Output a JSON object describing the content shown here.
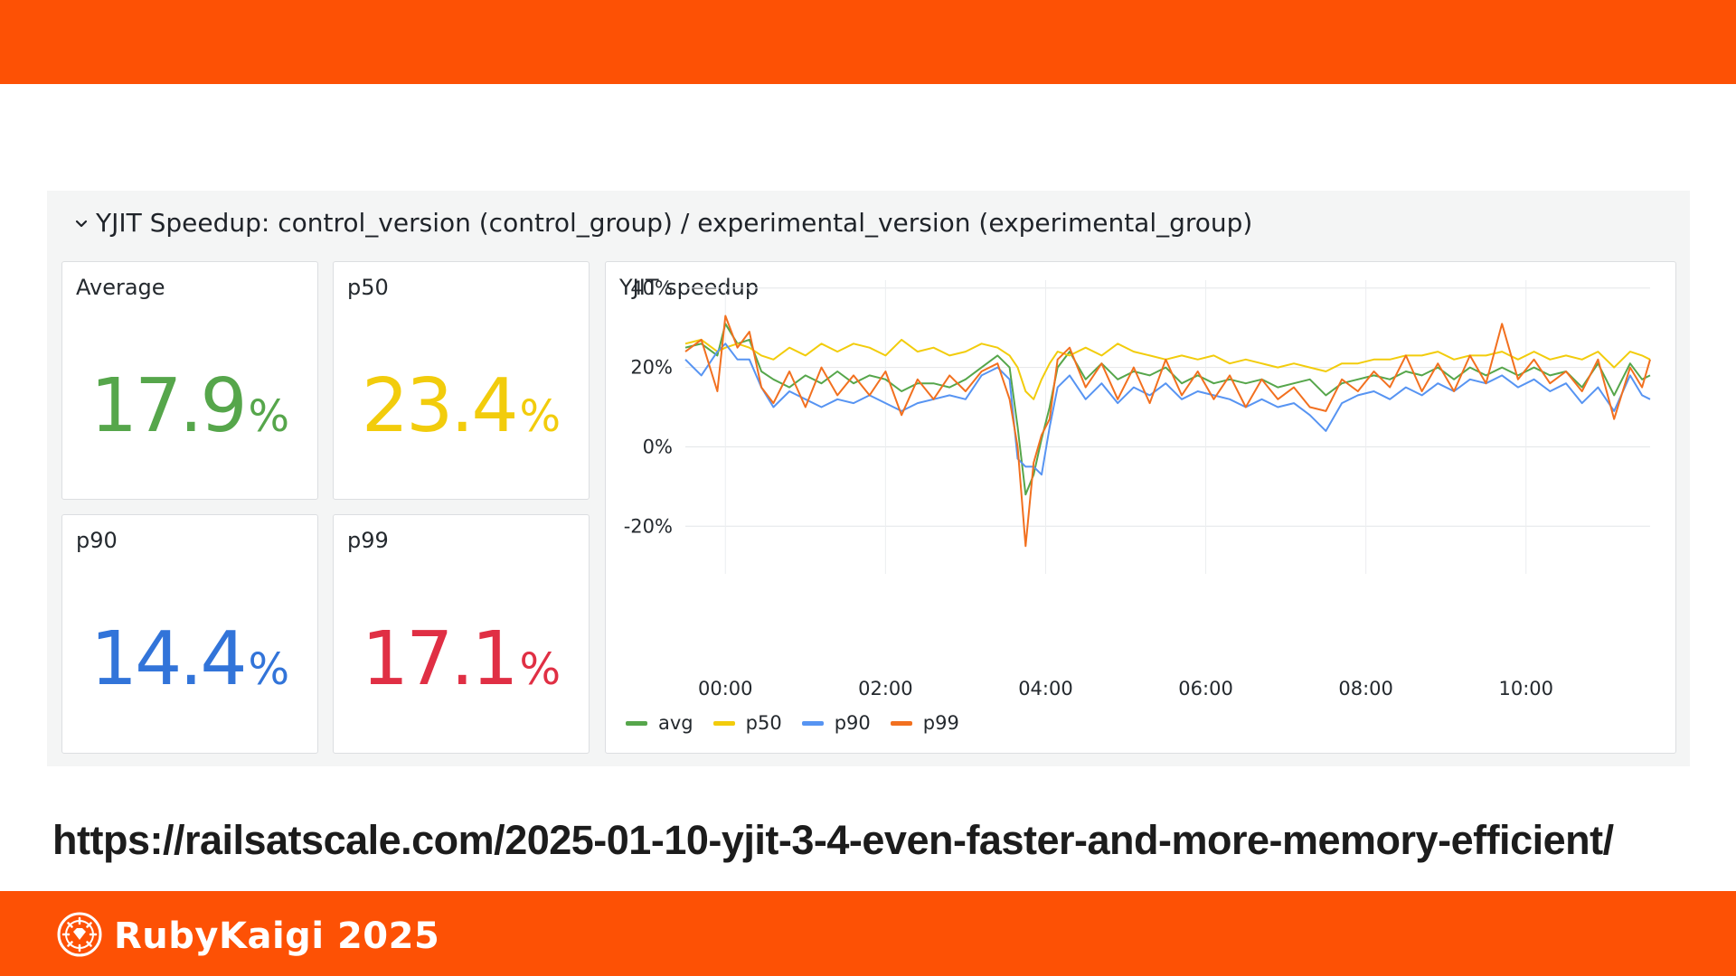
{
  "slide": {
    "url": "https://railsatscale.com/2025-01-10-yjit-3-4-even-faster-and-more-memory-efficient/",
    "brand_name": "RubyKaigi 2025",
    "accent_color": "#fd5105"
  },
  "dashboard": {
    "row_title": "YJIT Speedup: control_version (control_group) / experimental_version (experimental_group)",
    "row_icon": "chevron-down-icon",
    "stats": [
      {
        "title": "Average",
        "value": "17.9",
        "unit": "%",
        "color": "#56a64b"
      },
      {
        "title": "p50",
        "value": "23.4",
        "unit": "%",
        "color": "#f2cc0c"
      },
      {
        "title": "p90",
        "value": "14.4",
        "unit": "%",
        "color": "#3274d9"
      },
      {
        "title": "p99",
        "value": "17.1",
        "unit": "%",
        "color": "#e02f44"
      }
    ],
    "chart_title": "YJIT speedup"
  },
  "chart_data": {
    "type": "line",
    "title": "YJIT speedup",
    "xlabel": "",
    "ylabel": "",
    "x_ticks": [
      "00:00",
      "02:00",
      "04:00",
      "06:00",
      "08:00",
      "10:00"
    ],
    "y_ticks": [
      "40%",
      "20%",
      "0%",
      "-20%"
    ],
    "ylim": [
      -32,
      42
    ],
    "xlim": [
      -0.5,
      11.55
    ],
    "grid": true,
    "legend_position": "bottom",
    "series": [
      {
        "name": "avg",
        "color": "#56a64b",
        "points": [
          [
            -0.5,
            25
          ],
          [
            -0.3,
            26
          ],
          [
            -0.1,
            23
          ],
          [
            0.0,
            31
          ],
          [
            0.15,
            26
          ],
          [
            0.3,
            27
          ],
          [
            0.45,
            19
          ],
          [
            0.6,
            17
          ],
          [
            0.8,
            15
          ],
          [
            1.0,
            18
          ],
          [
            1.2,
            16
          ],
          [
            1.4,
            19
          ],
          [
            1.6,
            16
          ],
          [
            1.8,
            18
          ],
          [
            2.0,
            17
          ],
          [
            2.2,
            14
          ],
          [
            2.4,
            16
          ],
          [
            2.6,
            16
          ],
          [
            2.8,
            15
          ],
          [
            3.0,
            17
          ],
          [
            3.2,
            20
          ],
          [
            3.4,
            23
          ],
          [
            3.55,
            20
          ],
          [
            3.65,
            5
          ],
          [
            3.75,
            -12
          ],
          [
            3.85,
            -7
          ],
          [
            3.95,
            2
          ],
          [
            4.05,
            10
          ],
          [
            4.15,
            20
          ],
          [
            4.3,
            24
          ],
          [
            4.5,
            17
          ],
          [
            4.7,
            21
          ],
          [
            4.9,
            17
          ],
          [
            5.1,
            19
          ],
          [
            5.3,
            18
          ],
          [
            5.5,
            20
          ],
          [
            5.7,
            16
          ],
          [
            5.9,
            18
          ],
          [
            6.1,
            16
          ],
          [
            6.3,
            17
          ],
          [
            6.5,
            16
          ],
          [
            6.7,
            17
          ],
          [
            6.9,
            15
          ],
          [
            7.1,
            16
          ],
          [
            7.3,
            17
          ],
          [
            7.5,
            13
          ],
          [
            7.7,
            16
          ],
          [
            7.9,
            17
          ],
          [
            8.1,
            18
          ],
          [
            8.3,
            17
          ],
          [
            8.5,
            19
          ],
          [
            8.7,
            18
          ],
          [
            8.9,
            20
          ],
          [
            9.1,
            17
          ],
          [
            9.3,
            20
          ],
          [
            9.5,
            18
          ],
          [
            9.7,
            20
          ],
          [
            9.9,
            18
          ],
          [
            10.1,
            20
          ],
          [
            10.3,
            18
          ],
          [
            10.5,
            19
          ],
          [
            10.7,
            15
          ],
          [
            10.9,
            21
          ],
          [
            11.1,
            13
          ],
          [
            11.3,
            21
          ],
          [
            11.45,
            17
          ],
          [
            11.55,
            18
          ]
        ]
      },
      {
        "name": "p50",
        "color": "#f2cc0c",
        "points": [
          [
            -0.5,
            26
          ],
          [
            -0.3,
            27
          ],
          [
            -0.1,
            24
          ],
          [
            0.0,
            25
          ],
          [
            0.15,
            26
          ],
          [
            0.3,
            25
          ],
          [
            0.45,
            23
          ],
          [
            0.6,
            22
          ],
          [
            0.8,
            25
          ],
          [
            1.0,
            23
          ],
          [
            1.2,
            26
          ],
          [
            1.4,
            24
          ],
          [
            1.6,
            26
          ],
          [
            1.8,
            25
          ],
          [
            2.0,
            23
          ],
          [
            2.2,
            27
          ],
          [
            2.4,
            24
          ],
          [
            2.6,
            25
          ],
          [
            2.8,
            23
          ],
          [
            3.0,
            24
          ],
          [
            3.2,
            26
          ],
          [
            3.4,
            25
          ],
          [
            3.55,
            23
          ],
          [
            3.65,
            20
          ],
          [
            3.75,
            14
          ],
          [
            3.85,
            12
          ],
          [
            3.95,
            17
          ],
          [
            4.05,
            21
          ],
          [
            4.15,
            24
          ],
          [
            4.3,
            23
          ],
          [
            4.5,
            25
          ],
          [
            4.7,
            23
          ],
          [
            4.9,
            26
          ],
          [
            5.1,
            24
          ],
          [
            5.3,
            23
          ],
          [
            5.5,
            22
          ],
          [
            5.7,
            23
          ],
          [
            5.9,
            22
          ],
          [
            6.1,
            23
          ],
          [
            6.3,
            21
          ],
          [
            6.5,
            22
          ],
          [
            6.7,
            21
          ],
          [
            6.9,
            20
          ],
          [
            7.1,
            21
          ],
          [
            7.3,
            20
          ],
          [
            7.5,
            19
          ],
          [
            7.7,
            21
          ],
          [
            7.9,
            21
          ],
          [
            8.1,
            22
          ],
          [
            8.3,
            22
          ],
          [
            8.5,
            23
          ],
          [
            8.7,
            23
          ],
          [
            8.9,
            24
          ],
          [
            9.1,
            22
          ],
          [
            9.3,
            23
          ],
          [
            9.5,
            23
          ],
          [
            9.7,
            24
          ],
          [
            9.9,
            22
          ],
          [
            10.1,
            24
          ],
          [
            10.3,
            22
          ],
          [
            10.5,
            23
          ],
          [
            10.7,
            22
          ],
          [
            10.9,
            24
          ],
          [
            11.1,
            20
          ],
          [
            11.3,
            24
          ],
          [
            11.45,
            23
          ],
          [
            11.55,
            22
          ]
        ]
      },
      {
        "name": "p90",
        "color": "#5794f2",
        "points": [
          [
            -0.5,
            22
          ],
          [
            -0.3,
            18
          ],
          [
            -0.1,
            24
          ],
          [
            0.0,
            26
          ],
          [
            0.15,
            22
          ],
          [
            0.3,
            22
          ],
          [
            0.45,
            15
          ],
          [
            0.6,
            10
          ],
          [
            0.8,
            14
          ],
          [
            1.0,
            12
          ],
          [
            1.2,
            10
          ],
          [
            1.4,
            12
          ],
          [
            1.6,
            11
          ],
          [
            1.8,
            13
          ],
          [
            2.0,
            11
          ],
          [
            2.2,
            9
          ],
          [
            2.4,
            11
          ],
          [
            2.6,
            12
          ],
          [
            2.8,
            13
          ],
          [
            3.0,
            12
          ],
          [
            3.2,
            18
          ],
          [
            3.4,
            20
          ],
          [
            3.55,
            17
          ],
          [
            3.65,
            -3
          ],
          [
            3.75,
            -5
          ],
          [
            3.85,
            -5
          ],
          [
            3.95,
            -7
          ],
          [
            4.05,
            5
          ],
          [
            4.15,
            15
          ],
          [
            4.3,
            18
          ],
          [
            4.5,
            12
          ],
          [
            4.7,
            16
          ],
          [
            4.9,
            11
          ],
          [
            5.1,
            15
          ],
          [
            5.3,
            13
          ],
          [
            5.5,
            16
          ],
          [
            5.7,
            12
          ],
          [
            5.9,
            14
          ],
          [
            6.1,
            13
          ],
          [
            6.3,
            12
          ],
          [
            6.5,
            10
          ],
          [
            6.7,
            12
          ],
          [
            6.9,
            10
          ],
          [
            7.1,
            11
          ],
          [
            7.3,
            8
          ],
          [
            7.5,
            4
          ],
          [
            7.7,
            11
          ],
          [
            7.9,
            13
          ],
          [
            8.1,
            14
          ],
          [
            8.3,
            12
          ],
          [
            8.5,
            15
          ],
          [
            8.7,
            13
          ],
          [
            8.9,
            16
          ],
          [
            9.1,
            14
          ],
          [
            9.3,
            17
          ],
          [
            9.5,
            16
          ],
          [
            9.7,
            18
          ],
          [
            9.9,
            15
          ],
          [
            10.1,
            17
          ],
          [
            10.3,
            14
          ],
          [
            10.5,
            16
          ],
          [
            10.7,
            11
          ],
          [
            10.9,
            15
          ],
          [
            11.1,
            9
          ],
          [
            11.3,
            18
          ],
          [
            11.45,
            13
          ],
          [
            11.55,
            12
          ]
        ]
      },
      {
        "name": "p99",
        "color": "#f2701f",
        "points": [
          [
            -0.5,
            24
          ],
          [
            -0.3,
            27
          ],
          [
            -0.1,
            14
          ],
          [
            0.0,
            33
          ],
          [
            0.15,
            25
          ],
          [
            0.3,
            29
          ],
          [
            0.45,
            15
          ],
          [
            0.6,
            11
          ],
          [
            0.8,
            19
          ],
          [
            1.0,
            10
          ],
          [
            1.2,
            20
          ],
          [
            1.4,
            13
          ],
          [
            1.6,
            18
          ],
          [
            1.8,
            13
          ],
          [
            2.0,
            19
          ],
          [
            2.2,
            8
          ],
          [
            2.4,
            17
          ],
          [
            2.6,
            12
          ],
          [
            2.8,
            18
          ],
          [
            3.0,
            14
          ],
          [
            3.2,
            19
          ],
          [
            3.4,
            21
          ],
          [
            3.55,
            12
          ],
          [
            3.65,
            0
          ],
          [
            3.75,
            -25
          ],
          [
            3.85,
            -4
          ],
          [
            3.95,
            3
          ],
          [
            4.05,
            7
          ],
          [
            4.15,
            22
          ],
          [
            4.3,
            25
          ],
          [
            4.5,
            15
          ],
          [
            4.7,
            21
          ],
          [
            4.9,
            12
          ],
          [
            5.1,
            20
          ],
          [
            5.3,
            11
          ],
          [
            5.5,
            22
          ],
          [
            5.7,
            13
          ],
          [
            5.9,
            19
          ],
          [
            6.1,
            12
          ],
          [
            6.3,
            18
          ],
          [
            6.5,
            10
          ],
          [
            6.7,
            17
          ],
          [
            6.9,
            12
          ],
          [
            7.1,
            15
          ],
          [
            7.3,
            10
          ],
          [
            7.5,
            9
          ],
          [
            7.7,
            17
          ],
          [
            7.9,
            14
          ],
          [
            8.1,
            19
          ],
          [
            8.3,
            15
          ],
          [
            8.5,
            23
          ],
          [
            8.7,
            14
          ],
          [
            8.9,
            21
          ],
          [
            9.1,
            14
          ],
          [
            9.3,
            23
          ],
          [
            9.5,
            16
          ],
          [
            9.7,
            31
          ],
          [
            9.9,
            17
          ],
          [
            10.1,
            22
          ],
          [
            10.3,
            16
          ],
          [
            10.5,
            19
          ],
          [
            10.7,
            14
          ],
          [
            10.9,
            22
          ],
          [
            11.1,
            7
          ],
          [
            11.3,
            20
          ],
          [
            11.45,
            15
          ],
          [
            11.55,
            22
          ]
        ]
      }
    ]
  }
}
